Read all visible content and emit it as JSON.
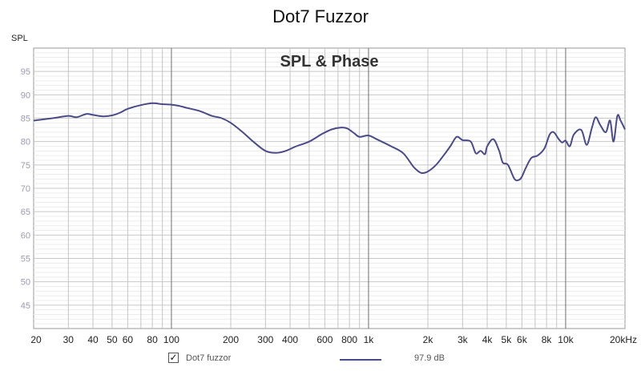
{
  "title": "Dot7 Fuzzor",
  "chart_data": {
    "type": "line",
    "title": "SPL & Phase",
    "ylabel": "SPL",
    "x_scale": "log",
    "xlim": [
      20,
      20000
    ],
    "ylim": [
      40,
      100
    ],
    "x_ticks": [
      {
        "v": 20,
        "label": "20"
      },
      {
        "v": 30,
        "label": "30"
      },
      {
        "v": 40,
        "label": "40"
      },
      {
        "v": 50,
        "label": "50"
      },
      {
        "v": 60,
        "label": "60"
      },
      {
        "v": 80,
        "label": "80"
      },
      {
        "v": 100,
        "label": "100"
      },
      {
        "v": 200,
        "label": "200"
      },
      {
        "v": 300,
        "label": "300"
      },
      {
        "v": 400,
        "label": "400"
      },
      {
        "v": 600,
        "label": "600"
      },
      {
        "v": 800,
        "label": "800"
      },
      {
        "v": 1000,
        "label": "1k"
      },
      {
        "v": 2000,
        "label": "2k"
      },
      {
        "v": 3000,
        "label": "3k"
      },
      {
        "v": 4000,
        "label": "4k"
      },
      {
        "v": 5000,
        "label": "5k"
      },
      {
        "v": 6000,
        "label": "6k"
      },
      {
        "v": 8000,
        "label": "8k"
      },
      {
        "v": 10000,
        "label": "10k"
      },
      {
        "v": 20000,
        "label": "20kHz"
      }
    ],
    "y_ticks": [
      45,
      50,
      55,
      60,
      65,
      70,
      75,
      80,
      85,
      90,
      95
    ],
    "grid": true,
    "legend_position": "bottom",
    "series": [
      {
        "name": "Dot7 fuzzor",
        "legend_value": "97.9 dB",
        "color": "#4a4a8a",
        "points": [
          [
            20,
            84.5
          ],
          [
            25,
            85.0
          ],
          [
            30,
            85.5
          ],
          [
            33,
            85.2
          ],
          [
            37,
            85.9
          ],
          [
            40,
            85.7
          ],
          [
            45,
            85.4
          ],
          [
            50,
            85.6
          ],
          [
            55,
            86.2
          ],
          [
            60,
            87.0
          ],
          [
            70,
            87.8
          ],
          [
            80,
            88.2
          ],
          [
            90,
            88.0
          ],
          [
            100,
            87.9
          ],
          [
            110,
            87.6
          ],
          [
            120,
            87.2
          ],
          [
            140,
            86.5
          ],
          [
            160,
            85.5
          ],
          [
            180,
            85.0
          ],
          [
            200,
            84.0
          ],
          [
            230,
            82.0
          ],
          [
            260,
            80.0
          ],
          [
            300,
            78.0
          ],
          [
            340,
            77.6
          ],
          [
            380,
            78.0
          ],
          [
            430,
            79.0
          ],
          [
            500,
            80.0
          ],
          [
            580,
            81.6
          ],
          [
            650,
            82.6
          ],
          [
            720,
            83.0
          ],
          [
            780,
            82.8
          ],
          [
            850,
            81.7
          ],
          [
            900,
            81.0
          ],
          [
            1000,
            81.3
          ],
          [
            1100,
            80.5
          ],
          [
            1300,
            79.0
          ],
          [
            1500,
            77.5
          ],
          [
            1700,
            74.5
          ],
          [
            1850,
            73.3
          ],
          [
            2000,
            73.6
          ],
          [
            2200,
            75.0
          ],
          [
            2400,
            77.0
          ],
          [
            2600,
            79.0
          ],
          [
            2800,
            81.0
          ],
          [
            3000,
            80.3
          ],
          [
            3300,
            80.0
          ],
          [
            3500,
            77.5
          ],
          [
            3700,
            78.0
          ],
          [
            3900,
            77.3
          ],
          [
            4000,
            79.0
          ],
          [
            4300,
            80.5
          ],
          [
            4600,
            78.0
          ],
          [
            4800,
            75.5
          ],
          [
            5100,
            75.0
          ],
          [
            5500,
            72.0
          ],
          [
            5800,
            71.8
          ],
          [
            6000,
            72.5
          ],
          [
            6300,
            74.5
          ],
          [
            6700,
            76.5
          ],
          [
            7200,
            77.0
          ],
          [
            7800,
            78.5
          ],
          [
            8300,
            81.5
          ],
          [
            8700,
            82.0
          ],
          [
            9200,
            80.6
          ],
          [
            9600,
            79.8
          ],
          [
            10000,
            80.2
          ],
          [
            10500,
            79.0
          ],
          [
            11000,
            81.5
          ],
          [
            12000,
            82.5
          ],
          [
            12800,
            79.3
          ],
          [
            13600,
            83.0
          ],
          [
            14200,
            85.2
          ],
          [
            15000,
            83.5
          ],
          [
            16000,
            82.0
          ],
          [
            16800,
            84.5
          ],
          [
            17500,
            80.0
          ],
          [
            18300,
            85.5
          ],
          [
            19000,
            84.5
          ],
          [
            20000,
            82.6
          ]
        ]
      }
    ]
  }
}
